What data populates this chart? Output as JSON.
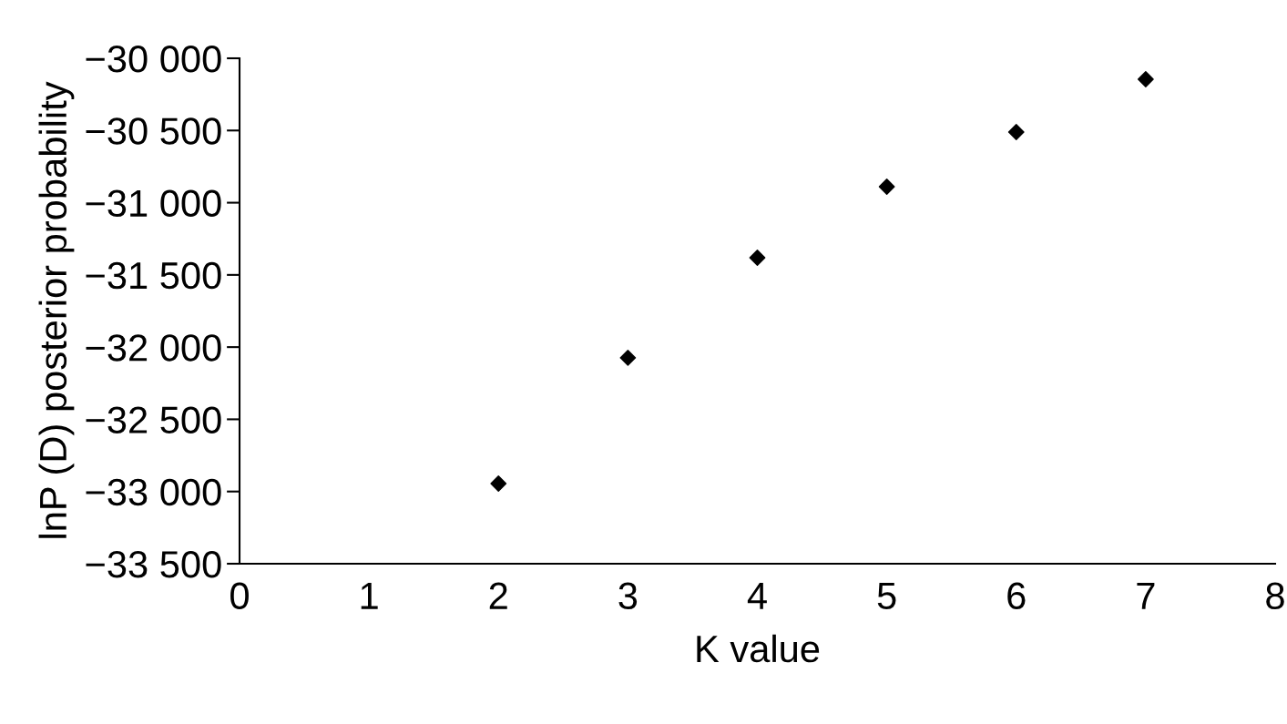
{
  "chart_data": {
    "type": "scatter",
    "xlabel": "K value",
    "ylabel": "lnP (D) posterior probability",
    "x": [
      2,
      3,
      4,
      5,
      6,
      7
    ],
    "series": [
      {
        "color": "#000000",
        "values": [
          -32945,
          -32074,
          -31381,
          -30889,
          -30511,
          -30145
        ]
      }
    ],
    "marker": "diamond",
    "grid": false,
    "legend": false,
    "xlim": [
      0,
      8
    ],
    "xticks": [
      0,
      1,
      2,
      3,
      4,
      5,
      6,
      7,
      8
    ],
    "ylim": [
      -33500,
      -30000
    ],
    "yticks": [
      {
        "value": -33500,
        "label": "−33 500"
      },
      {
        "value": -33000,
        "label": "−33 000"
      },
      {
        "value": -32500,
        "label": "−32 500"
      },
      {
        "value": -32000,
        "label": "−32 000"
      },
      {
        "value": -31500,
        "label": "−31 500"
      },
      {
        "value": -31000,
        "label": "−31 000"
      },
      {
        "value": -30500,
        "label": "−30 500"
      },
      {
        "value": -30000,
        "label": "−30 000"
      }
    ]
  }
}
